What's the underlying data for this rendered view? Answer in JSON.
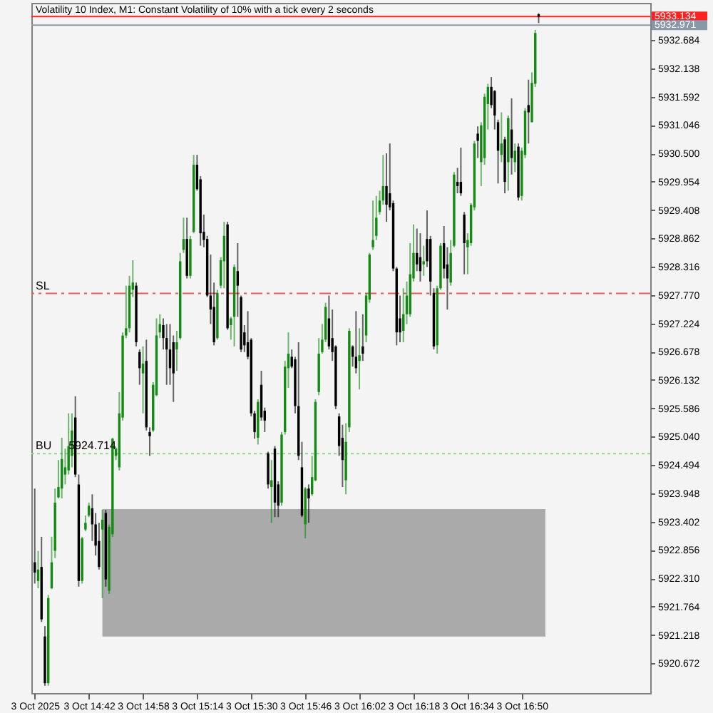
{
  "chart_data": {
    "type": "candlestick",
    "title": "Volatility 10 Index, M1: Constant Volatility of 10% with a tick every 2 seconds",
    "x": [
      "2025-10-03T14:26",
      "2025-10-03T14:27",
      "2025-10-03T14:28",
      "2025-10-03T14:29",
      "2025-10-03T14:30",
      "2025-10-03T14:31",
      "2025-10-03T14:32",
      "2025-10-03T14:33",
      "2025-10-03T14:34",
      "2025-10-03T14:35",
      "2025-10-03T14:36",
      "2025-10-03T14:37",
      "2025-10-03T14:38",
      "2025-10-03T14:39",
      "2025-10-03T14:40",
      "2025-10-03T14:41",
      "2025-10-03T14:42",
      "2025-10-03T14:43",
      "2025-10-03T14:44",
      "2025-10-03T14:45",
      "2025-10-03T14:46",
      "2025-10-03T14:47",
      "2025-10-03T14:48",
      "2025-10-03T14:49",
      "2025-10-03T14:50",
      "2025-10-03T14:51",
      "2025-10-03T14:52",
      "2025-10-03T14:53",
      "2025-10-03T14:54",
      "2025-10-03T14:55",
      "2025-10-03T14:56",
      "2025-10-03T14:57",
      "2025-10-03T14:58",
      "2025-10-03T14:59",
      "2025-10-03T15:00",
      "2025-10-03T15:01",
      "2025-10-03T15:02",
      "2025-10-03T15:03",
      "2025-10-03T15:04",
      "2025-10-03T15:05",
      "2025-10-03T15:06",
      "2025-10-03T15:07",
      "2025-10-03T15:08",
      "2025-10-03T15:09",
      "2025-10-03T15:10",
      "2025-10-03T15:11",
      "2025-10-03T15:12",
      "2025-10-03T15:13",
      "2025-10-03T15:14",
      "2025-10-03T15:15",
      "2025-10-03T15:16",
      "2025-10-03T15:17",
      "2025-10-03T15:18",
      "2025-10-03T15:19",
      "2025-10-03T15:20",
      "2025-10-03T15:21",
      "2025-10-03T15:22",
      "2025-10-03T15:23",
      "2025-10-03T15:24",
      "2025-10-03T15:25",
      "2025-10-03T15:26",
      "2025-10-03T15:27",
      "2025-10-03T15:28",
      "2025-10-03T15:29",
      "2025-10-03T15:30",
      "2025-10-03T15:31",
      "2025-10-03T15:32",
      "2025-10-03T15:33",
      "2025-10-03T15:34",
      "2025-10-03T15:35",
      "2025-10-03T15:36",
      "2025-10-03T15:37",
      "2025-10-03T15:38",
      "2025-10-03T15:39",
      "2025-10-03T15:40",
      "2025-10-03T15:41",
      "2025-10-03T15:42",
      "2025-10-03T15:43",
      "2025-10-03T15:44",
      "2025-10-03T15:45",
      "2025-10-03T15:46",
      "2025-10-03T15:47",
      "2025-10-03T15:48",
      "2025-10-03T15:49",
      "2025-10-03T15:50",
      "2025-10-03T15:51",
      "2025-10-03T15:52",
      "2025-10-03T15:53",
      "2025-10-03T15:54",
      "2025-10-03T15:55",
      "2025-10-03T15:56",
      "2025-10-03T15:57",
      "2025-10-03T15:58",
      "2025-10-03T15:59",
      "2025-10-03T16:00",
      "2025-10-03T16:01",
      "2025-10-03T16:02",
      "2025-10-03T16:03",
      "2025-10-03T16:04",
      "2025-10-03T16:05",
      "2025-10-03T16:06",
      "2025-10-03T16:07",
      "2025-10-03T16:08",
      "2025-10-03T16:09",
      "2025-10-03T16:10",
      "2025-10-03T16:11",
      "2025-10-03T16:12",
      "2025-10-03T16:13",
      "2025-10-03T16:14",
      "2025-10-03T16:15",
      "2025-10-03T16:16",
      "2025-10-03T16:17",
      "2025-10-03T16:18",
      "2025-10-03T16:19",
      "2025-10-03T16:20",
      "2025-10-03T16:21",
      "2025-10-03T16:22",
      "2025-10-03T16:23",
      "2025-10-03T16:24",
      "2025-10-03T16:25",
      "2025-10-03T16:26",
      "2025-10-03T16:27",
      "2025-10-03T16:28",
      "2025-10-03T16:29",
      "2025-10-03T16:30",
      "2025-10-03T16:31",
      "2025-10-03T16:32",
      "2025-10-03T16:33",
      "2025-10-03T16:34",
      "2025-10-03T16:35",
      "2025-10-03T16:36",
      "2025-10-03T16:37",
      "2025-10-03T16:38",
      "2025-10-03T16:39",
      "2025-10-03T16:40",
      "2025-10-03T16:41",
      "2025-10-03T16:42",
      "2025-10-03T16:43",
      "2025-10-03T16:44",
      "2025-10-03T16:45",
      "2025-10-03T16:46",
      "2025-10-03T16:47",
      "2025-10-03T16:48",
      "2025-10-03T16:49",
      "2025-10-03T16:50",
      "2025-10-03T16:51",
      "2025-10-03T16:52",
      "2025-10-03T16:53",
      "2025-10-03T16:54",
      "2025-10-03T16:55"
    ],
    "ohlc": [
      [
        5922.62,
        5924.04,
        5922.21,
        5922.42
      ],
      [
        5922.26,
        5922.84,
        5922.12,
        5922.48
      ],
      [
        5922.53,
        5923.11,
        5921.47,
        5921.52
      ],
      [
        5921.19,
        5921.39,
        5920.24,
        5920.29
      ],
      [
        5920.29,
        5921.99,
        5920.24,
        5921.93
      ],
      [
        5922.12,
        5923.11,
        5922.1,
        5922.62
      ],
      [
        5922.84,
        5924.04,
        5922.7,
        5923.77
      ],
      [
        5923.87,
        5924.59,
        5923.85,
        5924.07
      ],
      [
        5924.04,
        5925.02,
        5923.85,
        5924.61
      ],
      [
        5924.31,
        5924.81,
        5924.12,
        5924.45
      ],
      [
        5924.39,
        5925.49,
        5924.31,
        5924.86
      ],
      [
        5924.67,
        5925.49,
        5924.45,
        5925.16
      ],
      [
        5925.41,
        5925.82,
        5924.26,
        5924.31
      ],
      [
        5924.12,
        5924.31,
        5922.15,
        5922.26
      ],
      [
        5922.26,
        5923.11,
        5922.21,
        5923.08
      ],
      [
        5923.25,
        5923.52,
        5923.22,
        5923.38
      ],
      [
        5923.52,
        5923.77,
        5923.49,
        5923.71
      ],
      [
        5923.66,
        5923.93,
        5923.03,
        5923.35
      ],
      [
        5923.35,
        5923.57,
        5922.75,
        5922.94
      ],
      [
        5923.03,
        5923.38,
        5922.48,
        5922.53
      ],
      [
        5923.25,
        5923.63,
        5921.93,
        5923.44
      ],
      [
        5923.57,
        5923.63,
        5922.15,
        5922.29
      ],
      [
        5922.07,
        5923.35,
        5922.01,
        5923.3
      ],
      [
        5923.16,
        5925.02,
        5923.11,
        5925.0
      ],
      [
        5924.67,
        5924.83,
        5924.59,
        5924.81
      ],
      [
        5924.45,
        5925.9,
        5924.39,
        5925.49
      ],
      [
        5925.41,
        5927.05,
        5925.35,
        5926.99
      ],
      [
        5926.99,
        5927.95,
        5926.94,
        5927.13
      ],
      [
        5927.13,
        5928.14,
        5927.05,
        5927.95
      ],
      [
        5927.87,
        5928.44,
        5927.73,
        5928.01
      ],
      [
        5927.95,
        5928.01,
        5926.78,
        5926.86
      ],
      [
        5926.67,
        5926.72,
        5926.04,
        5926.36
      ],
      [
        5926.26,
        5926.78,
        5925.49,
        5926.45
      ],
      [
        5926.5,
        5926.91,
        5925.16,
        5925.22
      ],
      [
        5925.13,
        5925.22,
        5924.67,
        5925.05
      ],
      [
        5925.16,
        5926.09,
        5925.13,
        5926.04
      ],
      [
        5925.84,
        5927.32,
        5925.82,
        5926.99
      ],
      [
        5927.05,
        5927.4,
        5926.94,
        5927.21
      ],
      [
        5927.19,
        5927.32,
        5926.72,
        5926.94
      ],
      [
        5926.94,
        5927.21,
        5926.04,
        5926.72
      ],
      [
        5926.72,
        5927.21,
        5926.04,
        5926.36
      ],
      [
        5926.86,
        5926.99,
        5925.71,
        5926.26
      ],
      [
        5926.72,
        5927.08,
        5926.31,
        5926.86
      ],
      [
        5926.94,
        5928.58,
        5926.91,
        5928.42
      ],
      [
        5928.64,
        5929.26,
        5928.58,
        5928.85
      ],
      [
        5928.85,
        5929.26,
        5928.09,
        5928.14
      ],
      [
        5928.14,
        5928.91,
        5928.09,
        5928.85
      ],
      [
        5928.99,
        5930.47,
        5928.96,
        5930.28
      ],
      [
        5930.28,
        5930.47,
        5929.78,
        5929.81
      ],
      [
        5930.0,
        5930.06,
        5928.72,
        5928.96
      ],
      [
        5928.99,
        5929.32,
        5928.69,
        5928.83
      ],
      [
        5928.85,
        5928.91,
        5927.73,
        5927.76
      ],
      [
        5927.76,
        5928.55,
        5927.21,
        5927.49
      ],
      [
        5927.54,
        5928.01,
        5926.8,
        5926.86
      ],
      [
        5926.94,
        5927.87,
        5926.91,
        5927.81
      ],
      [
        5927.95,
        5928.5,
        5927.9,
        5928.44
      ],
      [
        5928.42,
        5929.18,
        5927.9,
        5928.91
      ],
      [
        5929.13,
        5929.18,
        5927.1,
        5927.13
      ],
      [
        5927.19,
        5927.35,
        5926.91,
        5927.32
      ],
      [
        5927.35,
        5928.36,
        5926.78,
        5928.31
      ],
      [
        5928.23,
        5928.77,
        5927.35,
        5927.95
      ],
      [
        5927.73,
        5927.76,
        5926.67,
        5926.72
      ],
      [
        5927.05,
        5927.19,
        5926.67,
        5926.8
      ],
      [
        5926.86,
        5927.46,
        5926.53,
        5926.58
      ],
      [
        5926.91,
        5926.94,
        5925.43,
        5925.49
      ],
      [
        5925.49,
        5925.54,
        5925.0,
        5925.13
      ],
      [
        5925.02,
        5925.76,
        5924.89,
        5925.71
      ],
      [
        5926.04,
        5926.31,
        5925.35,
        5925.41
      ],
      [
        5925.54,
        5925.6,
        5925.13,
        5925.35
      ],
      [
        5924.72,
        5924.75,
        5924.04,
        5924.12
      ],
      [
        5924.07,
        5924.59,
        5923.38,
        5924.2
      ],
      [
        5924.81,
        5924.86,
        5923.49,
        5923.77
      ],
      [
        5924.12,
        5924.18,
        5923.49,
        5923.71
      ],
      [
        5923.77,
        5925.13,
        5923.71,
        5925.08
      ],
      [
        5925.13,
        5926.5,
        5925.08,
        5926.39
      ],
      [
        5926.36,
        5927.05,
        5925.98,
        5926.64
      ],
      [
        5926.58,
        5926.72,
        5926.36,
        5926.39
      ],
      [
        5926.53,
        5926.58,
        5925.49,
        5925.63
      ],
      [
        5925.63,
        5926.86,
        5924.59,
        5924.67
      ],
      [
        5924.45,
        5924.94,
        5923.49,
        5923.52
      ],
      [
        5923.35,
        5924.07,
        5923.08,
        5924.04
      ],
      [
        5924.04,
        5924.12,
        5923.38,
        5923.85
      ],
      [
        5923.93,
        5924.67,
        5923.9,
        5924.26
      ],
      [
        5924.2,
        5925.76,
        5924.18,
        5925.71
      ],
      [
        5925.9,
        5926.94,
        5925.84,
        5926.64
      ],
      [
        5926.67,
        5927.21,
        5926.64,
        5926.91
      ],
      [
        5926.91,
        5927.62,
        5926.86,
        5927.54
      ],
      [
        5927.32,
        5927.76,
        5926.72,
        5926.78
      ],
      [
        5926.94,
        5927.49,
        5926.5,
        5926.67
      ],
      [
        5926.78,
        5926.8,
        5925.57,
        5925.63
      ],
      [
        5925.43,
        5925.49,
        5924.67,
        5924.86
      ],
      [
        5925.02,
        5925.27,
        5924.07,
        5924.59
      ],
      [
        5924.2,
        5925.3,
        5923.93,
        5924.94
      ],
      [
        5925.22,
        5927.13,
        5925.13,
        5927.08
      ],
      [
        5926.78,
        5926.8,
        5926.39,
        5926.58
      ],
      [
        5926.58,
        5927.46,
        5926.26,
        5926.36
      ],
      [
        5926.5,
        5927.13,
        5925.95,
        5926.61
      ],
      [
        5926.78,
        5927.4,
        5926.5,
        5926.64
      ],
      [
        5926.99,
        5927.81,
        5926.86,
        5927.76
      ],
      [
        5927.68,
        5928.58,
        5927.62,
        5928.55
      ],
      [
        5928.69,
        5929.59,
        5928.64,
        5928.83
      ],
      [
        5928.91,
        5929.68,
        5928.83,
        5929.26
      ],
      [
        5929.37,
        5929.78,
        5929.32,
        5929.59
      ],
      [
        5929.59,
        5930.47,
        5929.51,
        5929.87
      ],
      [
        5929.87,
        5930.5,
        5929.18,
        5929.51
      ],
      [
        5929.73,
        5930.69,
        5929.4,
        5929.46
      ],
      [
        5929.54,
        5929.59,
        5928.23,
        5928.28
      ],
      [
        5928.28,
        5928.31,
        5926.8,
        5927.05
      ],
      [
        5927.32,
        5927.76,
        5926.86,
        5927.05
      ],
      [
        5927.08,
        5927.9,
        5926.86,
        5927.4
      ],
      [
        5927.4,
        5928.03,
        5927.21,
        5927.76
      ],
      [
        5927.4,
        5928.77,
        5927.35,
        5928.17
      ],
      [
        5928.09,
        5929.13,
        5928.03,
        5928.58
      ],
      [
        5928.58,
        5929.05,
        5928.23,
        5928.36
      ],
      [
        5928.5,
        5928.96,
        5928.03,
        5928.23
      ],
      [
        5928.36,
        5928.72,
        5928.14,
        5928.42
      ],
      [
        5928.85,
        5929.4,
        5928.31,
        5928.42
      ],
      [
        5928.85,
        5928.91,
        5927.76,
        5928.03
      ],
      [
        5927.81,
        5927.9,
        5926.72,
        5926.78
      ],
      [
        5926.8,
        5927.95,
        5926.64,
        5927.9
      ],
      [
        5927.9,
        5928.77,
        5927.87,
        5928.72
      ],
      [
        5928.77,
        5929.1,
        5928.09,
        5928.28
      ],
      [
        5928.36,
        5928.69,
        5927.49,
        5928.09
      ],
      [
        5928.01,
        5928.83,
        5927.95,
        5928.58
      ],
      [
        5928.72,
        5930.14,
        5928.69,
        5930.09
      ],
      [
        5929.95,
        5930.22,
        5929.73,
        5929.87
      ],
      [
        5929.95,
        5930.61,
        5929.68,
        5929.73
      ],
      [
        5929.32,
        5929.37,
        5928.17,
        5928.77
      ],
      [
        5928.69,
        5928.96,
        5928.17,
        5928.83
      ],
      [
        5928.77,
        5929.54,
        5928.72,
        5929.51
      ],
      [
        5929.46,
        5930.74,
        5929.4,
        5930.69
      ],
      [
        5930.88,
        5931.02,
        5930.41,
        5930.74
      ],
      [
        5930.33,
        5931.1,
        5929.87,
        5931.04
      ],
      [
        5930.41,
        5931.65,
        5930.28,
        5931.59
      ],
      [
        5931.45,
        5931.84,
        5930.96,
        5931.78
      ],
      [
        5931.78,
        5931.97,
        5931.37,
        5931.43
      ],
      [
        5931.7,
        5931.72,
        5930.96,
        5931.23
      ],
      [
        5931.1,
        5931.15,
        5929.92,
        5930.55
      ],
      [
        5930.47,
        5931.29,
        5930.33,
        5930.69
      ],
      [
        5930.77,
        5930.82,
        5929.73,
        5929.95
      ],
      [
        5930.33,
        5931.23,
        5929.78,
        5931.18
      ],
      [
        5930.96,
        5931.56,
        5930.09,
        5930.41
      ],
      [
        5930.33,
        5930.69,
        5930.14,
        5930.55
      ],
      [
        5930.63,
        5930.69,
        5929.59,
        5929.65
      ],
      [
        5929.68,
        5930.61,
        5929.59,
        5930.55
      ],
      [
        5930.47,
        5931.37,
        5930.41,
        5931.32
      ],
      [
        5931.43,
        5931.92,
        5930.69,
        5931.29
      ],
      [
        5931.1,
        5932.06,
        5931.1,
        5931.86
      ],
      [
        5931.84,
        5932.88,
        5931.78,
        5932.82
      ],
      [
        5933.18,
        5933.2,
        5933.01,
        5933.13
      ]
    ],
    "colors": [
      "#000000",
      "#138a13",
      "#000000",
      "#000000",
      "#138a13",
      "#138a13",
      "#138a13",
      "#138a13",
      "#138a13",
      "#138a13",
      "#138a13",
      "#138a13",
      "#000000",
      "#000000",
      "#138a13",
      "#138a13",
      "#138a13",
      "#000000",
      "#000000",
      "#000000",
      "#138a13",
      "#000000",
      "#138a13",
      "#138a13",
      "#138a13",
      "#138a13",
      "#138a13",
      "#138a13",
      "#138a13",
      "#138a13",
      "#000000",
      "#000000",
      "#138a13",
      "#000000",
      "#000000",
      "#138a13",
      "#138a13",
      "#138a13",
      "#000000",
      "#000000",
      "#000000",
      "#000000",
      "#138a13",
      "#138a13",
      "#138a13",
      "#000000",
      "#138a13",
      "#138a13",
      "#000000",
      "#000000",
      "#000000",
      "#000000",
      "#000000",
      "#000000",
      "#138a13",
      "#138a13",
      "#138a13",
      "#000000",
      "#138a13",
      "#138a13",
      "#000000",
      "#000000",
      "#000000",
      "#000000",
      "#000000",
      "#000000",
      "#138a13",
      "#000000",
      "#000000",
      "#000000",
      "#138a13",
      "#000000",
      "#000000",
      "#138a13",
      "#138a13",
      "#138a13",
      "#000000",
      "#000000",
      "#000000",
      "#000000",
      "#138a13",
      "#000000",
      "#138a13",
      "#138a13",
      "#138a13",
      "#138a13",
      "#138a13",
      "#000000",
      "#000000",
      "#000000",
      "#000000",
      "#000000",
      "#138a13",
      "#138a13",
      "#000000",
      "#000000",
      "#138a13",
      "#000000",
      "#138a13",
      "#138a13",
      "#138a13",
      "#138a13",
      "#138a13",
      "#138a13",
      "#000000",
      "#000000",
      "#000000",
      "#000000",
      "#000000",
      "#138a13",
      "#138a13",
      "#138a13",
      "#138a13",
      "#000000",
      "#000000",
      "#138a13",
      "#000000",
      "#000000",
      "#000000",
      "#138a13",
      "#138a13",
      "#000000",
      "#000000",
      "#138a13",
      "#138a13",
      "#000000",
      "#000000",
      "#000000",
      "#138a13",
      "#138a13",
      "#138a13",
      "#000000",
      "#138a13",
      "#138a13",
      "#138a13",
      "#000000",
      "#000000",
      "#000000",
      "#138a13",
      "#000000",
      "#138a13",
      "#000000",
      "#138a13",
      "#000000",
      "#138a13",
      "#138a13",
      "#000000",
      "#138a13",
      "#138a13",
      "#000000"
    ],
    "series": [
      {
        "type": "line",
        "x": [
          "2025-10-03T14:46",
          "2025-10-03T15:20",
          "2025-10-03T15:51",
          "2025-10-03T16:25",
          "2025-10-03T16:57"
        ],
        "values": [
          5923.63,
          5923.63,
          5923.63,
          5923.63,
          5923.63
        ],
        "lower": [
          5921.19,
          5921.19,
          5921.19,
          5921.19,
          5921.19
        ],
        "upper": [
          5923.63,
          5923.63,
          5923.63,
          5923.63,
          5923.63
        ],
        "color": "#aaaaaa"
      }
    ],
    "xlim": [
      "2025-10-03T14:25",
      "2025-10-03T17:28"
    ],
    "xticks": [
      {
        "value": "2025-10-03T14:26",
        "label": "3 Oct 2025"
      },
      {
        "value": "2025-10-03T14:42",
        "label": "3 Oct 14:42"
      },
      {
        "value": "2025-10-03T14:58",
        "label": "3 Oct 14:58"
      },
      {
        "value": "2025-10-03T15:14",
        "label": "3 Oct 15:14"
      },
      {
        "value": "2025-10-03T15:30",
        "label": "3 Oct 15:30"
      },
      {
        "value": "2025-10-03T15:46",
        "label": "3 Oct 15:46"
      },
      {
        "value": "2025-10-03T16:02",
        "label": "3 Oct 16:02"
      },
      {
        "value": "2025-10-03T16:18",
        "label": "3 Oct 16:18"
      },
      {
        "value": "2025-10-03T16:34",
        "label": "3 Oct 16:34"
      },
      {
        "value": "2025-10-03T16:50",
        "label": "3 Oct 16:50"
      }
    ],
    "ylim": [
      5920.1,
      5933.4
    ],
    "yticks": [
      5920.672,
      5921.218,
      5921.764,
      {
        "value": 5922.31,
        "label": "5922.310"
      },
      5922.856,
      5923.402,
      5923.948,
      5924.494,
      {
        "value": 5925.04,
        "label": "5925.040"
      },
      5925.586,
      5926.132,
      5926.678,
      5927.224,
      {
        "value": 5927.77,
        "label": "5927.770"
      },
      5928.316,
      5928.862,
      5929.408,
      5929.954,
      {
        "value": 5930.5,
        "label": "5930.500"
      },
      5931.046,
      5931.592,
      5932.138,
      5932.684
    ],
    "ref_lines": [
      {
        "axis": "y",
        "value": 5927.8,
        "label": "SL",
        "color": "#e05a5a",
        "line_style": "dashed"
      },
      {
        "axis": "y",
        "value": 5924.714,
        "label": "BU",
        "color": "#8ed88e",
        "line_style": "dotted"
      },
      {
        "axis": "y",
        "value": 5933.134,
        "label": "5933.134",
        "color": "#ff2020"
      },
      {
        "axis": "y",
        "value": 5932.971,
        "label": "5932.971",
        "color": "#8a97a8"
      }
    ],
    "annotations": [
      {
        "text": "5924.714",
        "x": "2025-10-03T14:36",
        "y": 5924.714
      }
    ]
  }
}
